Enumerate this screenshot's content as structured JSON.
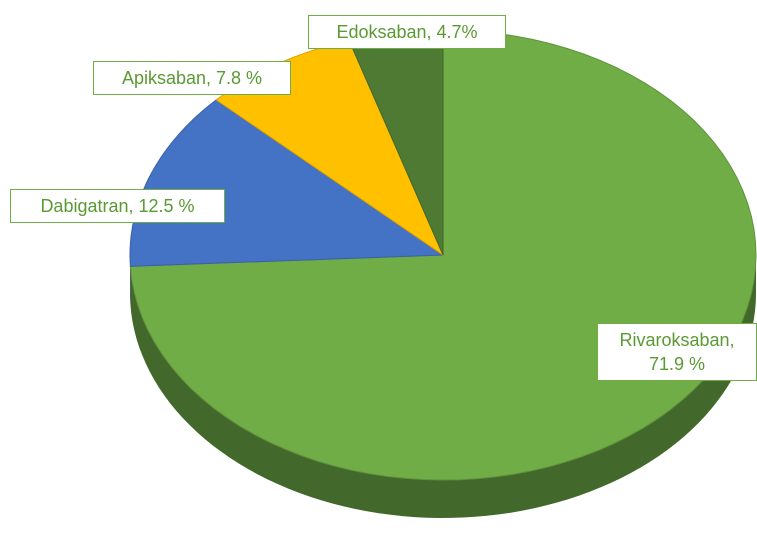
{
  "chart_data": {
    "type": "pie",
    "categories": [
      "Rivaroksaban",
      "Dabigatran",
      "Apiksaban",
      "Edoksaban"
    ],
    "values": [
      71.9,
      12.5,
      7.8,
      4.7
    ],
    "value_labels": [
      "Rivaroksaban, 71.9 %",
      "Dabigatran, 12.5 %",
      "Apiksaban, 7.8 %",
      "Edoksaban, 4.7%"
    ],
    "colors": [
      "#70ad47",
      "#4472c4",
      "#ffc000",
      "#4e7a34"
    ]
  }
}
